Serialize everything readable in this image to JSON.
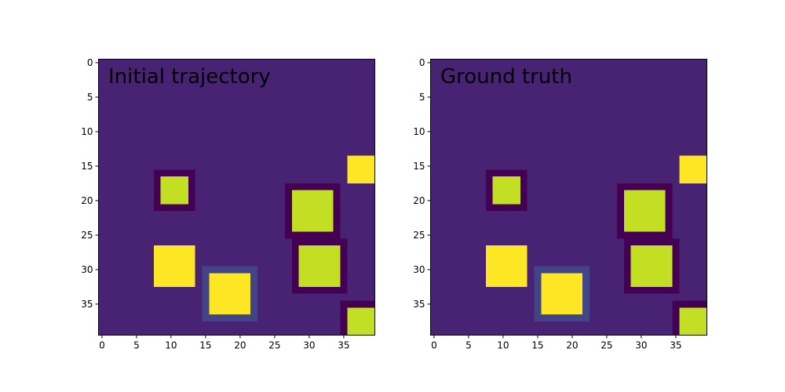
{
  "chart_data": [
    {
      "type": "heatmap",
      "title": "Initial trajectory",
      "xlabel": "",
      "ylabel": "",
      "grid_size": [
        40,
        40
      ],
      "xlim": [
        -0.5,
        39.5
      ],
      "ylim": [
        39.5,
        -0.5
      ],
      "x_ticks": [
        0,
        5,
        10,
        15,
        20,
        25,
        30,
        35
      ],
      "y_ticks": [
        0,
        5,
        10,
        15,
        20,
        25,
        30,
        35
      ],
      "background_color": "#482374",
      "cells": [
        {
          "x": [
            8,
            13
          ],
          "y": [
            16,
            21
          ],
          "color": "#440154"
        },
        {
          "x": [
            9,
            12
          ],
          "y": [
            17,
            20
          ],
          "color": "#c2df23"
        },
        {
          "x": [
            27,
            34
          ],
          "y": [
            18,
            25
          ],
          "color": "#440154"
        },
        {
          "x": [
            28,
            33
          ],
          "y": [
            19,
            24
          ],
          "color": "#c2df23"
        },
        {
          "x": [
            28,
            35
          ],
          "y": [
            26,
            33
          ],
          "color": "#440154"
        },
        {
          "x": [
            29,
            34
          ],
          "y": [
            27,
            32
          ],
          "color": "#c2df23"
        },
        {
          "x": [
            35,
            39
          ],
          "y": [
            35,
            39
          ],
          "color": "#440154"
        },
        {
          "x": [
            36,
            39
          ],
          "y": [
            36,
            39
          ],
          "color": "#c2df23"
        },
        {
          "x": [
            36,
            39
          ],
          "y": [
            14,
            17
          ],
          "color": "#fde725"
        },
        {
          "x": [
            8,
            13
          ],
          "y": [
            27,
            32
          ],
          "color": "#fde725"
        },
        {
          "x": [
            15,
            22
          ],
          "y": [
            30,
            37
          ],
          "color": "#414487"
        },
        {
          "x": [
            16,
            21
          ],
          "y": [
            31,
            36
          ],
          "color": "#fde725"
        }
      ]
    },
    {
      "type": "heatmap",
      "title": "Ground truth",
      "xlabel": "",
      "ylabel": "",
      "grid_size": [
        40,
        40
      ],
      "xlim": [
        -0.5,
        39.5
      ],
      "ylim": [
        39.5,
        -0.5
      ],
      "x_ticks": [
        0,
        5,
        10,
        15,
        20,
        25,
        30,
        35
      ],
      "y_ticks": [
        0,
        5,
        10,
        15,
        20,
        25,
        30,
        35
      ],
      "background_color": "#482374",
      "cells": [
        {
          "x": [
            8,
            13
          ],
          "y": [
            16,
            21
          ],
          "color": "#440154"
        },
        {
          "x": [
            9,
            12
          ],
          "y": [
            17,
            20
          ],
          "color": "#c2df23"
        },
        {
          "x": [
            27,
            34
          ],
          "y": [
            18,
            25
          ],
          "color": "#440154"
        },
        {
          "x": [
            28,
            33
          ],
          "y": [
            19,
            24
          ],
          "color": "#c2df23"
        },
        {
          "x": [
            28,
            35
          ],
          "y": [
            26,
            33
          ],
          "color": "#440154"
        },
        {
          "x": [
            29,
            34
          ],
          "y": [
            27,
            32
          ],
          "color": "#c2df23"
        },
        {
          "x": [
            35,
            39
          ],
          "y": [
            35,
            39
          ],
          "color": "#440154"
        },
        {
          "x": [
            36,
            39
          ],
          "y": [
            36,
            39
          ],
          "color": "#c2df23"
        },
        {
          "x": [
            36,
            39
          ],
          "y": [
            14,
            17
          ],
          "color": "#fde725"
        },
        {
          "x": [
            8,
            13
          ],
          "y": [
            27,
            32
          ],
          "color": "#fde725"
        },
        {
          "x": [
            15,
            22
          ],
          "y": [
            30,
            37
          ],
          "color": "#414487"
        },
        {
          "x": [
            16,
            21
          ],
          "y": [
            31,
            36
          ],
          "color": "#fde725"
        }
      ]
    }
  ]
}
